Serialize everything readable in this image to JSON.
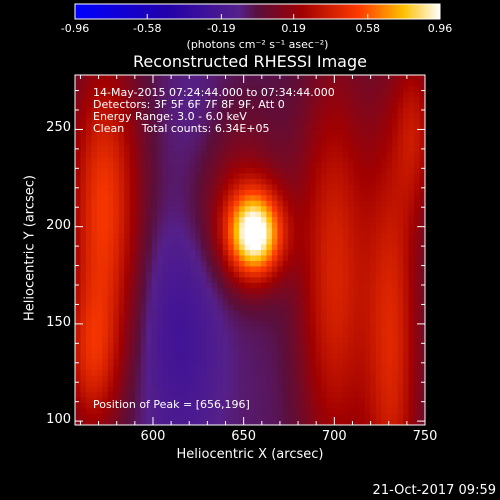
{
  "chart_data": {
    "type": "heatmap",
    "title": "Reconstructed RHESSI Image",
    "xlabel": "Heliocentric X (arcsec)",
    "ylabel": "Heliocentric Y (arcsec)",
    "xlim": [
      557,
      750
    ],
    "ylim": [
      98,
      278
    ],
    "x_ticks": [
      600,
      650,
      700,
      750
    ],
    "y_ticks": [
      100,
      150,
      200,
      250
    ],
    "colorbar": {
      "ticks": [
        "-0.96",
        "-0.58",
        "-0.19",
        "0.19",
        "0.58",
        "0.96"
      ],
      "range": [
        -0.96,
        0.96
      ],
      "units_label": "(photons cm⁻² s⁻¹ asec⁻²)"
    },
    "annotations": [
      "14-May-2015 07:24:44.000 to 07:34:44.000",
      "Detectors: 3F 5F 6F 7F 8F 9F, Att 0",
      "Energy Range: 3.0 - 6.0 keV",
      "Clean     Total counts: 6.34E+05"
    ],
    "peak_label": "Position of Peak = [656,196]",
    "peak": [
      656,
      196
    ],
    "sources": [
      {
        "x": 656,
        "y": 196,
        "amp": 1.0,
        "sx": 11,
        "sy": 16
      },
      {
        "x": 640,
        "y": 220,
        "amp": 0.25,
        "sx": 22,
        "sy": 32
      },
      {
        "x": 573,
        "y": 210,
        "amp": 0.55,
        "sx": 14,
        "sy": 55
      },
      {
        "x": 566,
        "y": 130,
        "amp": 0.35,
        "sx": 11,
        "sy": 28
      },
      {
        "x": 700,
        "y": 175,
        "amp": 0.45,
        "sx": 14,
        "sy": 75
      },
      {
        "x": 732,
        "y": 140,
        "amp": 0.45,
        "sx": 11,
        "sy": 85
      },
      {
        "x": 745,
        "y": 250,
        "amp": 0.3,
        "sx": 8,
        "sy": 30
      },
      {
        "x": 615,
        "y": 150,
        "amp": -0.2,
        "sx": 16,
        "sy": 50
      },
      {
        "x": 625,
        "y": 245,
        "amp": -0.12,
        "sx": 14,
        "sy": 30
      }
    ],
    "background": -0.05
  },
  "footer_date": "21-Oct-2017 09:59"
}
